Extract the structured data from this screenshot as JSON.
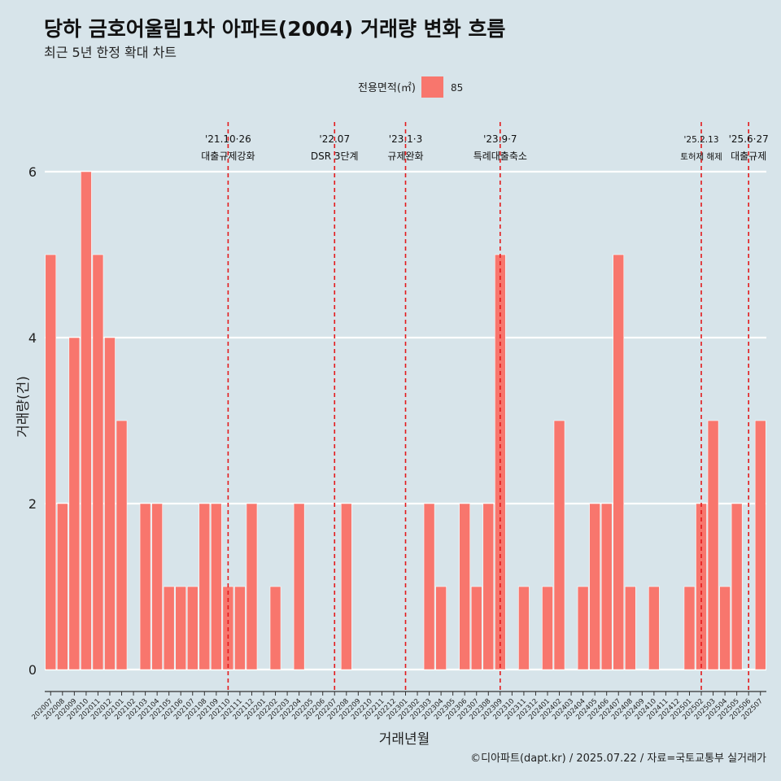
{
  "title": "당하 금호어울림1차 아파트(2004) 거래량 변화 흐름",
  "subtitle": "최근 5년 한정 확대 차트",
  "caption": "©디아파트(dapt.kr) / 2025.07.22 / 자료=국토교통부 실거래가",
  "legend": {
    "title": "전용면적(㎡)",
    "label": "85",
    "color": "#f8766d"
  },
  "chart_data": {
    "type": "bar",
    "xlabel": "거래년월",
    "ylabel": "거래량(건)",
    "ylim": [
      0,
      6
    ],
    "yticks": [
      0,
      2,
      4,
      6
    ],
    "grid": true,
    "legend_position": "top",
    "categories": [
      "202007",
      "202008",
      "202009",
      "202010",
      "202011",
      "202012",
      "202101",
      "202102",
      "202103",
      "202104",
      "202105",
      "202106",
      "202107",
      "202108",
      "202109",
      "202110",
      "202111",
      "202112",
      "202201",
      "202202",
      "202203",
      "202204",
      "202205",
      "202206",
      "202207",
      "202208",
      "202209",
      "202210",
      "202211",
      "202212",
      "202301",
      "202302",
      "202303",
      "202304",
      "202305",
      "202306",
      "202307",
      "202308",
      "202309",
      "202310",
      "202311",
      "202312",
      "202401",
      "202402",
      "202403",
      "202404",
      "202405",
      "202406",
      "202407",
      "202408",
      "202409",
      "202410",
      "202411",
      "202412",
      "202501",
      "202502",
      "202503",
      "202504",
      "202505",
      "202506",
      "202507"
    ],
    "series": [
      {
        "name": "85",
        "color": "#f8766d",
        "values": [
          5,
          2,
          4,
          6,
          5,
          4,
          3,
          0,
          2,
          2,
          1,
          1,
          1,
          2,
          2,
          1,
          1,
          2,
          0,
          1,
          0,
          2,
          0,
          0,
          0,
          2,
          0,
          0,
          0,
          0,
          0,
          0,
          2,
          1,
          0,
          2,
          1,
          2,
          5,
          0,
          1,
          0,
          1,
          3,
          0,
          1,
          2,
          2,
          5,
          1,
          0,
          1,
          0,
          0,
          1,
          2,
          3,
          1,
          2,
          0,
          3
        ]
      }
    ],
    "annotations": [
      {
        "x": "202110",
        "date": "'21.10·26",
        "text": "대출규제강화"
      },
      {
        "x": "202207",
        "date": "'22.07",
        "text": "DSR 3단계"
      },
      {
        "x": "202301",
        "date": "'23.1·3",
        "text": "규제완화"
      },
      {
        "x": "202309",
        "date": "'23.9·7",
        "text": "특례대출축소"
      },
      {
        "x": "202502",
        "date": "'25.2.13",
        "text": "토허제 해제",
        "small": true
      },
      {
        "x": "202506",
        "date": "'25.6·27",
        "text": "대출규제"
      }
    ]
  }
}
